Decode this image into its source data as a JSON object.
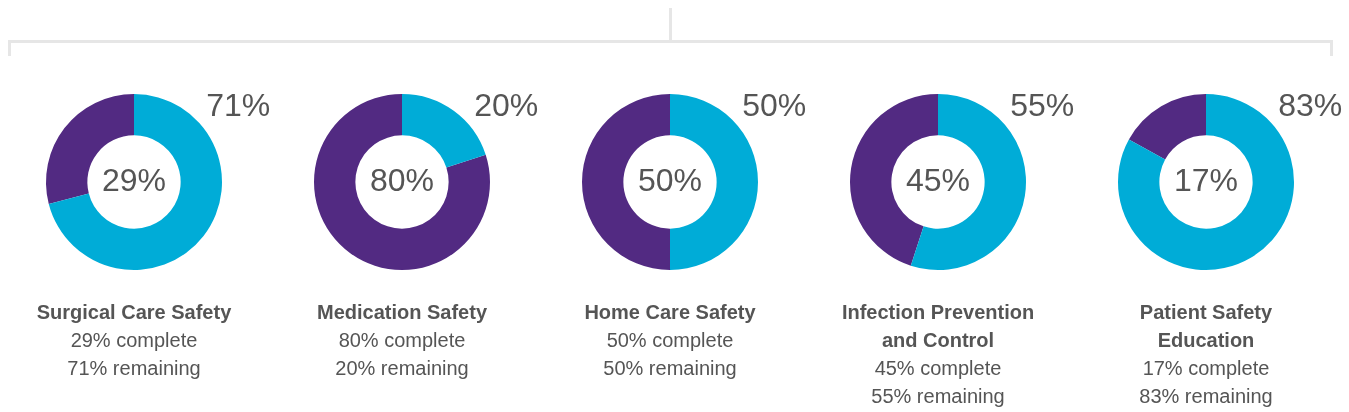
{
  "chart_data": [
    {
      "type": "donut",
      "title": "Surgical Care Safety",
      "categories": [
        null,
        null
      ],
      "values": [
        29,
        71
      ],
      "colors": [
        "#522a82",
        "#00acd7"
      ],
      "value_labels": [
        "29%",
        "71%"
      ],
      "annotations": [
        "29% complete",
        "71% remaining"
      ]
    },
    {
      "type": "donut",
      "title": "Medication Safety",
      "categories": [
        null,
        null
      ],
      "values": [
        80,
        20
      ],
      "colors": [
        "#522a82",
        "#00acd7"
      ],
      "value_labels": [
        "80%",
        "20%"
      ],
      "annotations": [
        "80% complete",
        "20% remaining"
      ]
    },
    {
      "type": "donut",
      "title": "Home Care Safety",
      "categories": [
        null,
        null
      ],
      "values": [
        50,
        50
      ],
      "colors": [
        "#522a82",
        "#00acd7"
      ],
      "value_labels": [
        "50%",
        "50%"
      ],
      "annotations": [
        "50% complete",
        "50% remaining"
      ]
    },
    {
      "type": "donut",
      "title": "Infection Prevention and Control",
      "categories": [
        null,
        null
      ],
      "values": [
        45,
        55
      ],
      "colors": [
        "#522a82",
        "#00acd7"
      ],
      "value_labels": [
        "45%",
        "55%"
      ],
      "annotations": [
        "45% complete",
        "55% remaining"
      ]
    },
    {
      "type": "donut",
      "title": "Patient Safety Education",
      "categories": [
        null,
        null
      ],
      "values": [
        17,
        83
      ],
      "colors": [
        "#522a82",
        "#00acd7"
      ],
      "value_labels": [
        "17%",
        "83%"
      ],
      "annotations": [
        "17% complete",
        "83% remaining"
      ]
    }
  ]
}
